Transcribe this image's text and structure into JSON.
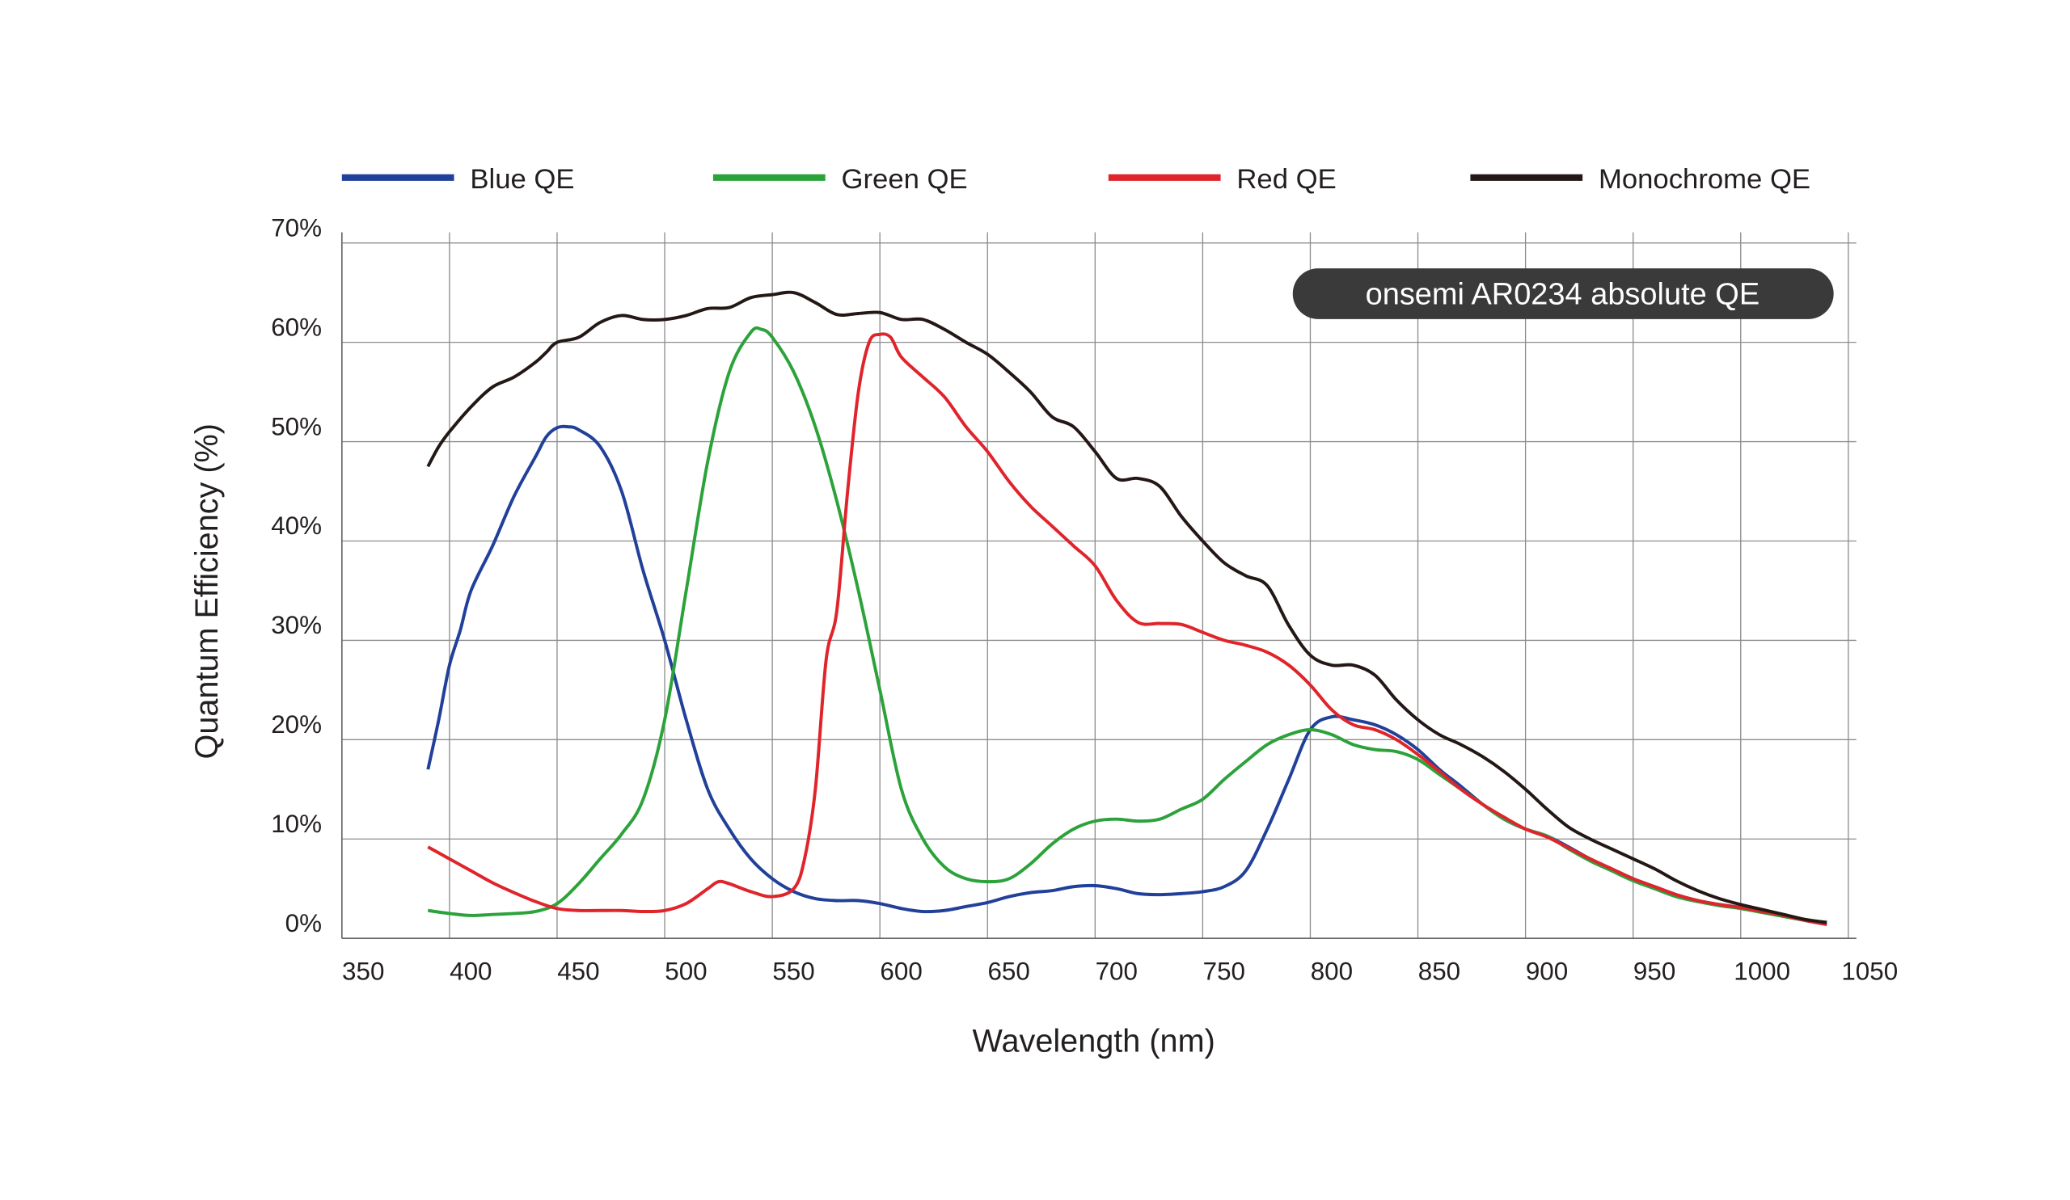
{
  "chart_data": {
    "type": "line",
    "title": "",
    "annotation": "onsemi AR0234 absolute QE",
    "xlabel": "Wavelength (nm)",
    "ylabel": "Quantum Efficiency (%)",
    "xlim": [
      350,
      1050
    ],
    "ylim": [
      0,
      70
    ],
    "x_ticks": [
      "350",
      "400",
      "450",
      "500",
      "550",
      "600",
      "650",
      "700",
      "750",
      "800",
      "850",
      "900",
      "950",
      "1000",
      "1050"
    ],
    "y_ticks": [
      "0%",
      "10%",
      "20%",
      "30%",
      "40%",
      "50%",
      "60%",
      "70%"
    ],
    "grid": true,
    "legend_position": "top",
    "series": [
      {
        "name": "Blue QE",
        "color": "#21409a",
        "points": [
          [
            390,
            17
          ],
          [
            395,
            22
          ],
          [
            400,
            27.5
          ],
          [
            405,
            31
          ],
          [
            410,
            35
          ],
          [
            420,
            39.5
          ],
          [
            430,
            44.5
          ],
          [
            440,
            48.5
          ],
          [
            445,
            50.5
          ],
          [
            450,
            51.4
          ],
          [
            455,
            51.5
          ],
          [
            460,
            51.2
          ],
          [
            470,
            49.5
          ],
          [
            480,
            45
          ],
          [
            490,
            37
          ],
          [
            500,
            30
          ],
          [
            510,
            22
          ],
          [
            520,
            15
          ],
          [
            530,
            11
          ],
          [
            540,
            8
          ],
          [
            550,
            6
          ],
          [
            560,
            4.7
          ],
          [
            570,
            4
          ],
          [
            580,
            3.8
          ],
          [
            590,
            3.8
          ],
          [
            600,
            3.5
          ],
          [
            610,
            3
          ],
          [
            620,
            2.7
          ],
          [
            630,
            2.8
          ],
          [
            640,
            3.2
          ],
          [
            650,
            3.6
          ],
          [
            660,
            4.2
          ],
          [
            670,
            4.6
          ],
          [
            680,
            4.8
          ],
          [
            690,
            5.2
          ],
          [
            700,
            5.3
          ],
          [
            710,
            5
          ],
          [
            720,
            4.5
          ],
          [
            730,
            4.4
          ],
          [
            740,
            4.5
          ],
          [
            750,
            4.7
          ],
          [
            760,
            5.2
          ],
          [
            770,
            6.8
          ],
          [
            780,
            11
          ],
          [
            790,
            16
          ],
          [
            800,
            21
          ],
          [
            810,
            22.3
          ],
          [
            820,
            22
          ],
          [
            830,
            21.5
          ],
          [
            840,
            20.5
          ],
          [
            850,
            19
          ],
          [
            860,
            17
          ],
          [
            870,
            15.3
          ],
          [
            880,
            13.5
          ],
          [
            890,
            12
          ],
          [
            900,
            11
          ],
          [
            910,
            10.3
          ],
          [
            920,
            9.2
          ],
          [
            930,
            8
          ],
          [
            940,
            7
          ],
          [
            950,
            6
          ],
          [
            960,
            5.2
          ],
          [
            970,
            4.4
          ],
          [
            980,
            3.8
          ],
          [
            990,
            3.4
          ],
          [
            1000,
            3.1
          ],
          [
            1010,
            2.7
          ],
          [
            1020,
            2.3
          ],
          [
            1030,
            1.8
          ],
          [
            1040,
            1.4
          ]
        ]
      },
      {
        "name": "Green QE",
        "color": "#2ca23a",
        "points": [
          [
            390,
            2.8
          ],
          [
            400,
            2.5
          ],
          [
            410,
            2.3
          ],
          [
            420,
            2.4
          ],
          [
            430,
            2.5
          ],
          [
            440,
            2.7
          ],
          [
            450,
            3.5
          ],
          [
            460,
            5.5
          ],
          [
            470,
            8
          ],
          [
            480,
            10.5
          ],
          [
            490,
            14
          ],
          [
            500,
            22
          ],
          [
            510,
            35
          ],
          [
            520,
            48
          ],
          [
            530,
            57
          ],
          [
            540,
            61
          ],
          [
            545,
            61.3
          ],
          [
            550,
            60.5
          ],
          [
            560,
            57
          ],
          [
            570,
            51.5
          ],
          [
            580,
            44
          ],
          [
            590,
            35
          ],
          [
            600,
            25
          ],
          [
            610,
            15
          ],
          [
            620,
            10
          ],
          [
            630,
            7.2
          ],
          [
            640,
            6
          ],
          [
            650,
            5.7
          ],
          [
            660,
            6
          ],
          [
            670,
            7.5
          ],
          [
            680,
            9.5
          ],
          [
            690,
            11
          ],
          [
            700,
            11.8
          ],
          [
            710,
            12
          ],
          [
            720,
            11.8
          ],
          [
            730,
            12
          ],
          [
            740,
            13
          ],
          [
            750,
            14
          ],
          [
            760,
            16
          ],
          [
            770,
            17.8
          ],
          [
            780,
            19.5
          ],
          [
            790,
            20.5
          ],
          [
            800,
            21
          ],
          [
            810,
            20.5
          ],
          [
            820,
            19.5
          ],
          [
            830,
            19
          ],
          [
            840,
            18.8
          ],
          [
            850,
            18
          ],
          [
            860,
            16.5
          ],
          [
            870,
            15
          ],
          [
            880,
            13.5
          ],
          [
            890,
            12
          ],
          [
            900,
            11
          ],
          [
            910,
            10.3
          ],
          [
            920,
            9
          ],
          [
            930,
            7.8
          ],
          [
            940,
            6.8
          ],
          [
            950,
            5.8
          ],
          [
            960,
            5
          ],
          [
            970,
            4.2
          ],
          [
            980,
            3.7
          ],
          [
            990,
            3.3
          ],
          [
            1000,
            3
          ],
          [
            1010,
            2.6
          ],
          [
            1020,
            2.2
          ],
          [
            1030,
            1.8
          ],
          [
            1040,
            1.4
          ]
        ]
      },
      {
        "name": "Red QE",
        "color": "#e0242b",
        "points": [
          [
            390,
            9.2
          ],
          [
            400,
            8
          ],
          [
            410,
            6.8
          ],
          [
            420,
            5.6
          ],
          [
            430,
            4.6
          ],
          [
            440,
            3.7
          ],
          [
            450,
            3
          ],
          [
            460,
            2.8
          ],
          [
            470,
            2.8
          ],
          [
            480,
            2.8
          ],
          [
            490,
            2.7
          ],
          [
            500,
            2.8
          ],
          [
            510,
            3.5
          ],
          [
            520,
            5
          ],
          [
            525,
            5.7
          ],
          [
            530,
            5.5
          ],
          [
            540,
            4.7
          ],
          [
            550,
            4.2
          ],
          [
            560,
            5
          ],
          [
            565,
            8
          ],
          [
            570,
            15
          ],
          [
            575,
            28
          ],
          [
            580,
            33
          ],
          [
            585,
            45
          ],
          [
            590,
            55
          ],
          [
            595,
            60
          ],
          [
            600,
            60.8
          ],
          [
            605,
            60.5
          ],
          [
            610,
            58.5
          ],
          [
            620,
            56.5
          ],
          [
            630,
            54.5
          ],
          [
            640,
            51.5
          ],
          [
            650,
            49
          ],
          [
            660,
            46
          ],
          [
            670,
            43.5
          ],
          [
            680,
            41.5
          ],
          [
            690,
            39.5
          ],
          [
            700,
            37.5
          ],
          [
            710,
            34
          ],
          [
            720,
            31.8
          ],
          [
            730,
            31.7
          ],
          [
            740,
            31.6
          ],
          [
            750,
            30.8
          ],
          [
            760,
            30
          ],
          [
            770,
            29.5
          ],
          [
            780,
            28.8
          ],
          [
            790,
            27.5
          ],
          [
            800,
            25.5
          ],
          [
            810,
            23
          ],
          [
            820,
            21.5
          ],
          [
            830,
            21
          ],
          [
            840,
            20
          ],
          [
            850,
            18.5
          ],
          [
            860,
            16.8
          ],
          [
            870,
            15
          ],
          [
            880,
            13.5
          ],
          [
            890,
            12.2
          ],
          [
            900,
            11
          ],
          [
            910,
            10.2
          ],
          [
            920,
            9.1
          ],
          [
            930,
            8
          ],
          [
            940,
            7
          ],
          [
            950,
            6
          ],
          [
            960,
            5.2
          ],
          [
            970,
            4.4
          ],
          [
            980,
            3.8
          ],
          [
            990,
            3.4
          ],
          [
            1000,
            3.1
          ],
          [
            1010,
            2.7
          ],
          [
            1020,
            2.3
          ],
          [
            1030,
            1.8
          ],
          [
            1040,
            1.4
          ]
        ]
      },
      {
        "name": "Monochrome QE",
        "color": "#231815",
        "points": [
          [
            390,
            47.5
          ],
          [
            395,
            49.5
          ],
          [
            400,
            51
          ],
          [
            410,
            53.5
          ],
          [
            420,
            55.5
          ],
          [
            430,
            56.5
          ],
          [
            440,
            58
          ],
          [
            445,
            59
          ],
          [
            450,
            60
          ],
          [
            460,
            60.5
          ],
          [
            470,
            62
          ],
          [
            480,
            62.7
          ],
          [
            490,
            62.3
          ],
          [
            500,
            62.3
          ],
          [
            510,
            62.7
          ],
          [
            520,
            63.4
          ],
          [
            530,
            63.5
          ],
          [
            540,
            64.5
          ],
          [
            550,
            64.8
          ],
          [
            560,
            65
          ],
          [
            570,
            64
          ],
          [
            580,
            62.8
          ],
          [
            590,
            62.9
          ],
          [
            600,
            63
          ],
          [
            610,
            62.3
          ],
          [
            620,
            62.3
          ],
          [
            630,
            61.3
          ],
          [
            640,
            60
          ],
          [
            650,
            58.8
          ],
          [
            660,
            57
          ],
          [
            670,
            55
          ],
          [
            680,
            52.5
          ],
          [
            690,
            51.5
          ],
          [
            700,
            49
          ],
          [
            710,
            46.3
          ],
          [
            720,
            46.3
          ],
          [
            730,
            45.5
          ],
          [
            740,
            42.5
          ],
          [
            750,
            40
          ],
          [
            760,
            37.8
          ],
          [
            770,
            36.5
          ],
          [
            780,
            35.5
          ],
          [
            790,
            31.5
          ],
          [
            800,
            28.5
          ],
          [
            810,
            27.5
          ],
          [
            820,
            27.5
          ],
          [
            830,
            26.5
          ],
          [
            840,
            24
          ],
          [
            850,
            22
          ],
          [
            860,
            20.5
          ],
          [
            870,
            19.5
          ],
          [
            880,
            18.3
          ],
          [
            890,
            16.8
          ],
          [
            900,
            15
          ],
          [
            910,
            13
          ],
          [
            920,
            11.2
          ],
          [
            930,
            10
          ],
          [
            940,
            9
          ],
          [
            950,
            8
          ],
          [
            960,
            7
          ],
          [
            970,
            5.8
          ],
          [
            980,
            4.8
          ],
          [
            990,
            4
          ],
          [
            1000,
            3.4
          ],
          [
            1010,
            2.9
          ],
          [
            1020,
            2.4
          ],
          [
            1030,
            1.9
          ],
          [
            1040,
            1.6
          ]
        ]
      }
    ]
  },
  "colors": {
    "grid": "#8c8c8c",
    "badge_bg": "#3a3a3a"
  }
}
